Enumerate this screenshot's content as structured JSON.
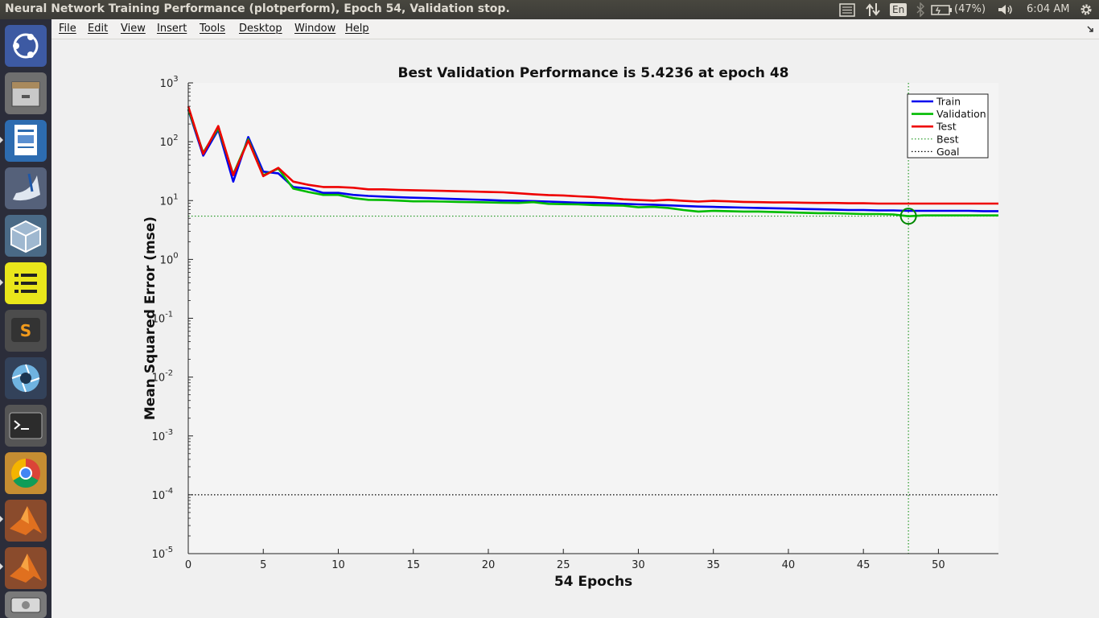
{
  "window": {
    "title": "Neural Network Training Performance (plotperform), Epoch 54, Validation stop."
  },
  "topbar": {
    "lang": "En",
    "battery": "(47%)",
    "time": "6:04 AM",
    "icons": [
      "menu-list-icon",
      "network-arrows-icon",
      "bluetooth-icon",
      "battery-icon",
      "volume-icon",
      "gear-icon"
    ]
  },
  "launcher": {
    "items": [
      "ubuntu-dash-icon",
      "files-icon",
      "writer-icon",
      "editor-icon",
      "virtualbox-icon",
      "notes-icon",
      "sublime-icon",
      "shutter-icon",
      "terminal-icon",
      "chrome-icon",
      "matlab-icon",
      "matlab-icon-2",
      "drive-icon"
    ]
  },
  "menu": [
    "File",
    "Edit",
    "View",
    "Insert",
    "Tools",
    "Desktop",
    "Window",
    "Help"
  ],
  "colors": {
    "train": "#0000ee",
    "validation": "#00bb00",
    "test": "#ee0000",
    "best": "#008800",
    "goal": "#000000",
    "plotbg": "#f4f4f4"
  },
  "chart_data": {
    "type": "line",
    "title": "Best Validation Performance is 5.4236 at epoch 48",
    "xlabel": "54 Epochs",
    "ylabel": "Mean Squared Error  (mse)",
    "y_scale": "log",
    "xlim": [
      0,
      54
    ],
    "ylim": [
      1e-05,
      1000
    ],
    "xticks": [
      0,
      5,
      10,
      15,
      20,
      25,
      30,
      35,
      40,
      45,
      50
    ],
    "yticks": [
      {
        "base": "10",
        "exp": "3"
      },
      {
        "base": "10",
        "exp": "2"
      },
      {
        "base": "10",
        "exp": "1"
      },
      {
        "base": "10",
        "exp": "0"
      },
      {
        "base": "10",
        "exp": "-1"
      },
      {
        "base": "10",
        "exp": "-2"
      },
      {
        "base": "10",
        "exp": "-3"
      },
      {
        "base": "10",
        "exp": "-4"
      },
      {
        "base": "10",
        "exp": "-5"
      }
    ],
    "legend_position": "top-right",
    "x": [
      0,
      1,
      2,
      3,
      4,
      5,
      6,
      7,
      8,
      9,
      10,
      11,
      12,
      13,
      14,
      15,
      16,
      17,
      18,
      19,
      20,
      21,
      22,
      23,
      24,
      25,
      26,
      27,
      28,
      29,
      30,
      31,
      32,
      33,
      34,
      35,
      36,
      37,
      38,
      39,
      40,
      41,
      42,
      43,
      44,
      45,
      46,
      47,
      48,
      49,
      50,
      51,
      52,
      53,
      54
    ],
    "series": [
      {
        "name": "Train",
        "values": [
          350,
          58,
          160,
          21,
          120,
          31,
          29,
          17,
          16,
          13.5,
          13.5,
          12.5,
          12,
          11.7,
          11.4,
          11.2,
          11,
          10.8,
          10.6,
          10.4,
          10.2,
          10,
          9.9,
          9.8,
          9.6,
          9.4,
          9.2,
          9.1,
          9,
          8.8,
          8.6,
          8.5,
          8.3,
          8.1,
          7.9,
          7.8,
          7.7,
          7.6,
          7.5,
          7.4,
          7.3,
          7.2,
          7.1,
          7,
          6.9,
          6.9,
          6.8,
          6.8,
          6.7,
          6.7,
          6.7,
          6.7,
          6.7,
          6.6,
          6.6
        ]
      },
      {
        "name": "Validation",
        "values": [
          360,
          65,
          170,
          28,
          110,
          27,
          35,
          16,
          14,
          12.5,
          12.5,
          11,
          10.3,
          10.2,
          10,
          9.7,
          9.7,
          9.6,
          9.5,
          9.4,
          9.3,
          9.2,
          9.1,
          9.4,
          8.8,
          8.7,
          8.6,
          8.4,
          8.3,
          8.2,
          7.7,
          7.8,
          7.5,
          6.9,
          6.5,
          6.7,
          6.6,
          6.5,
          6.5,
          6.4,
          6.3,
          6.2,
          6.1,
          6.1,
          6,
          5.9,
          5.9,
          5.8,
          5.4236,
          5.6,
          5.6,
          5.6,
          5.6,
          5.6,
          5.6
        ]
      },
      {
        "name": "Test",
        "values": [
          400,
          62,
          185,
          27,
          105,
          26,
          36,
          21,
          18.5,
          17,
          17,
          16.5,
          15.5,
          15.5,
          15.2,
          15,
          14.8,
          14.6,
          14.4,
          14.2,
          14,
          13.8,
          13.3,
          12.8,
          12.4,
          12.2,
          11.8,
          11.5,
          11,
          10.5,
          10.2,
          10,
          10.3,
          9.9,
          9.6,
          9.9,
          9.7,
          9.5,
          9.4,
          9.3,
          9.3,
          9.2,
          9.1,
          9.1,
          9,
          9,
          8.9,
          8.9,
          8.9,
          8.9,
          8.9,
          8.9,
          8.9,
          8.9,
          8.9
        ]
      }
    ],
    "best": {
      "label": "Best",
      "epoch": 48,
      "value": 5.4236
    },
    "goal": {
      "label": "Goal",
      "value": 0.0001
    }
  }
}
